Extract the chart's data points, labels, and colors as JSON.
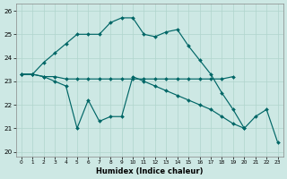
{
  "xlabel": "Humidex (Indice chaleur)",
  "background_color": "#cde8e4",
  "grid_color": "#b0d4cc",
  "line_color": "#006666",
  "xlim": [
    -0.5,
    23.5
  ],
  "ylim": [
    19.8,
    26.3
  ],
  "xticks": [
    0,
    1,
    2,
    3,
    4,
    5,
    6,
    7,
    8,
    9,
    10,
    11,
    12,
    13,
    14,
    15,
    16,
    17,
    18,
    19,
    20,
    21,
    22,
    23
  ],
  "yticks": [
    20,
    21,
    22,
    23,
    24,
    25,
    26
  ],
  "curve1_x": [
    0,
    1,
    2,
    3,
    4,
    5,
    6,
    7,
    8,
    9,
    10,
    11,
    12,
    13,
    14,
    15,
    16,
    17,
    18,
    19,
    20
  ],
  "curve1_y": [
    23.3,
    23.3,
    23.8,
    24.2,
    24.6,
    25.0,
    25.0,
    25.0,
    25.5,
    25.7,
    25.7,
    25.0,
    24.9,
    25.1,
    25.2,
    24.5,
    23.9,
    23.3,
    22.5,
    21.8,
    21.0
  ],
  "curve2_x": [
    0,
    1,
    2,
    3,
    4,
    5,
    6,
    7,
    8,
    9,
    10,
    11,
    12,
    13,
    14,
    15,
    16,
    17,
    18,
    19
  ],
  "curve2_y": [
    23.3,
    23.3,
    23.2,
    23.2,
    23.1,
    23.1,
    23.1,
    23.1,
    23.1,
    23.1,
    23.1,
    23.1,
    23.1,
    23.1,
    23.1,
    23.1,
    23.1,
    23.1,
    23.1,
    23.2
  ],
  "curve3_x": [
    0,
    1,
    2,
    3,
    4,
    5,
    6,
    7,
    8,
    9,
    10,
    11,
    12,
    13,
    14,
    15,
    16,
    17,
    18,
    19,
    20,
    21,
    22,
    23
  ],
  "curve3_y": [
    23.3,
    23.3,
    23.2,
    23.0,
    22.8,
    21.0,
    22.2,
    21.3,
    21.5,
    21.5,
    23.2,
    23.0,
    22.8,
    22.6,
    22.4,
    22.2,
    22.0,
    21.8,
    21.5,
    21.2,
    21.0,
    21.5,
    21.8,
    20.4
  ]
}
